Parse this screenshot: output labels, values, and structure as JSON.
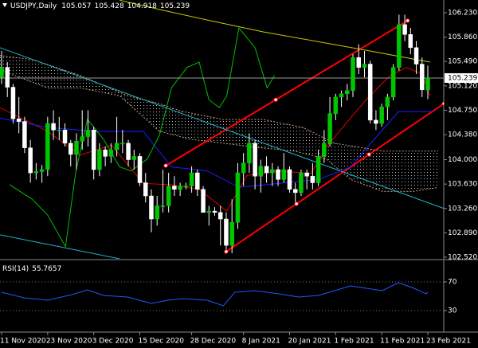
{
  "chart_data": [
    {
      "type": "candlestick",
      "title": "USDJPY,Daily",
      "categories": [
        "11 Nov 2020",
        null,
        null,
        null,
        null,
        null,
        null,
        null,
        "23 Nov 2020",
        null,
        null,
        null,
        null,
        null,
        null,
        null,
        "3 Dec 2020",
        null,
        null,
        null,
        null,
        null,
        null,
        null,
        "15 Dec 2020",
        null,
        null,
        null,
        null,
        null,
        null,
        null,
        null,
        "28 Dec 2020",
        null,
        null,
        null,
        null,
        null,
        null,
        null,
        null,
        "8 Jan 2021",
        null,
        null,
        null,
        null,
        null,
        null,
        null,
        "20 Jan 2021",
        null,
        null,
        null,
        null,
        null,
        null,
        null,
        "1 Feb 2021",
        null,
        null,
        null,
        null,
        null,
        null,
        null,
        "11 Feb 2021",
        null,
        null,
        null,
        null,
        null,
        null,
        null,
        "23 Feb 2021"
      ],
      "open": [
        105.25,
        105.4,
        105.1,
        104.62,
        104.58,
        104.18,
        103.8,
        103.82,
        103.85,
        104.55,
        104.45,
        104.45,
        104.25,
        104.08,
        104.28,
        104.35,
        104.45,
        103.85,
        104.15,
        104.05,
        104.15,
        104.25,
        104.25,
        104.0,
        104.05,
        103.65,
        103.45,
        103.1,
        103.3,
        103.3,
        103.6,
        103.55,
        103.6,
        103.6,
        103.8,
        103.55,
        103.2,
        103.22,
        103.2,
        103.1,
        102.7,
        103.05,
        103.8,
        103.95,
        104.25,
        103.75,
        103.9,
        103.8,
        103.85,
        103.7,
        103.85,
        103.55,
        103.5,
        103.8,
        103.75,
        103.65,
        104.05,
        104.25,
        104.7,
        104.95,
        105.0,
        105.05,
        105.55,
        105.4,
        105.45,
        104.6,
        104.55,
        104.8,
        104.95,
        105.4,
        106.05,
        105.9,
        105.7,
        105.45,
        105.057
      ],
      "high": [
        105.65,
        105.48,
        105.15,
        104.95,
        104.65,
        104.3,
        103.95,
        103.92,
        104.65,
        104.75,
        104.65,
        104.55,
        104.3,
        104.4,
        104.75,
        104.75,
        104.5,
        104.25,
        104.2,
        104.25,
        104.65,
        104.45,
        104.3,
        104.15,
        104.1,
        103.8,
        103.55,
        103.45,
        103.85,
        103.8,
        103.75,
        103.65,
        103.65,
        103.9,
        103.85,
        103.6,
        103.3,
        103.28,
        103.3,
        103.2,
        103.4,
        103.95,
        104.1,
        104.4,
        104.3,
        104.0,
        104.05,
        103.95,
        103.9,
        104.1,
        103.9,
        103.65,
        103.85,
        103.85,
        103.95,
        104.15,
        104.45,
        104.95,
        105.0,
        105.05,
        105.15,
        105.6,
        105.75,
        105.65,
        105.5,
        104.75,
        104.85,
        105.0,
        105.45,
        106.2,
        106.2,
        106.0,
        105.8,
        105.55,
        105.428
      ],
      "low": [
        105.15,
        104.95,
        104.55,
        104.4,
        104.1,
        103.65,
        103.7,
        103.65,
        103.75,
        104.3,
        104.3,
        104.2,
        103.9,
        103.85,
        104.15,
        104.2,
        103.7,
        103.75,
        103.9,
        103.95,
        104.05,
        104.1,
        103.9,
        103.85,
        103.6,
        103.35,
        102.9,
        103.0,
        103.2,
        103.2,
        103.45,
        103.45,
        103.55,
        103.5,
        103.45,
        103.2,
        103.0,
        103.15,
        102.7,
        102.6,
        102.58,
        102.95,
        103.6,
        103.8,
        103.55,
        103.5,
        103.65,
        103.6,
        103.6,
        103.65,
        103.5,
        103.35,
        103.45,
        103.55,
        103.55,
        103.6,
        103.95,
        104.2,
        104.6,
        104.8,
        104.9,
        104.95,
        105.3,
        105.25,
        104.55,
        104.45,
        104.5,
        104.6,
        104.9,
        105.35,
        105.8,
        105.6,
        105.3,
        104.95,
        104.918
      ],
      "close": [
        105.4,
        105.1,
        104.62,
        104.58,
        104.18,
        103.8,
        103.82,
        103.85,
        104.55,
        104.45,
        104.45,
        104.25,
        104.08,
        104.28,
        104.35,
        104.45,
        103.85,
        104.15,
        104.05,
        104.15,
        104.25,
        104.25,
        104.0,
        104.05,
        103.65,
        103.45,
        103.1,
        103.3,
        103.3,
        103.6,
        103.55,
        103.6,
        103.6,
        103.8,
        103.55,
        103.2,
        103.22,
        103.2,
        103.1,
        102.7,
        103.05,
        103.8,
        103.95,
        104.25,
        103.75,
        103.9,
        103.8,
        103.85,
        103.7,
        103.85,
        103.55,
        103.5,
        103.8,
        103.75,
        103.65,
        104.05,
        104.25,
        104.7,
        104.95,
        105.0,
        105.05,
        105.55,
        105.4,
        105.45,
        104.6,
        104.55,
        104.8,
        104.95,
        105.4,
        106.05,
        105.9,
        105.7,
        105.45,
        105.06,
        105.239
      ],
      "up_color": "#00c800",
      "down_color": "#ffffff",
      "wick_color": "#ffffff",
      "ylim": [
        102.496,
        106.423
      ],
      "yticks": [
        {
          "value": 106.23,
          "label": "106.230"
        },
        {
          "value": 105.86,
          "label": "105.860"
        },
        {
          "value": 105.49,
          "label": "105.490"
        },
        {
          "value": 105.12,
          "label": "105.120"
        },
        {
          "value": 104.75,
          "label": "104.750"
        },
        {
          "value": 104.38,
          "label": "104.380"
        },
        {
          "value": 104.0,
          "label": "104.000"
        },
        {
          "value": 103.63,
          "label": "103.630"
        },
        {
          "value": 103.26,
          "label": "103.260"
        },
        {
          "value": 102.89,
          "label": "102.890"
        },
        {
          "value": 102.52,
          "label": "102.520"
        }
      ],
      "cloud": {
        "color": "#c89a78",
        "upper": {
          "x": [
            -0.3,
            5.3,
            13.6,
            21.9,
            27.4,
            31.5,
            38.5,
            45.4,
            52.3,
            57.8,
            62.0,
            66.1,
            70.3,
            75.8
          ],
          "values": [
            105.58,
            105.52,
            105.28,
            104.97,
            104.85,
            104.73,
            104.61,
            104.61,
            104.49,
            104.25,
            104.19,
            104.13,
            104.13,
            104.13
          ]
        },
        "lower": {
          "x": [
            -0.3,
            8.0,
            13.6,
            20.5,
            27.4,
            32.9,
            38.5,
            44.0,
            50.9,
            56.4,
            60.6,
            66.1,
            71.6,
            75.8
          ],
          "values": [
            105.36,
            105.09,
            105.09,
            104.97,
            104.43,
            104.31,
            104.25,
            104.19,
            104.13,
            104.01,
            103.7,
            103.52,
            103.52,
            103.58
          ]
        }
      },
      "lines": [
        {
          "color": "#c8c800",
          "x": [
            20.5,
            27.4,
            35.7,
            45.4,
            55.0,
            63.3,
            74.4
          ],
          "values": [
            106.42,
            106.28,
            106.12,
            105.94,
            105.79,
            105.66,
            105.48
          ]
        },
        {
          "color": "#e00000",
          "x": [
            -0.3,
            3.9,
            8.0,
            13.6,
            19.1,
            24.6,
            29.5,
            34.3,
            39.1,
            42.6,
            48.1,
            53.7,
            56.4,
            59.2,
            63.3,
            67.5,
            70.3,
            73.0,
            74.4
          ],
          "values": [
            104.79,
            104.61,
            104.43,
            104.07,
            104.22,
            103.64,
            103.62,
            103.55,
            103.22,
            103.76,
            103.83,
            103.79,
            104.19,
            104.49,
            104.91,
            105.28,
            105.4,
            105.3,
            104.97
          ]
        },
        {
          "color": "#1e1eff",
          "x": [
            -0.3,
            8.0,
            16.3,
            24.6,
            29.5,
            35.7,
            41.2,
            48.1,
            55.0,
            60.6,
            64.7,
            68.9,
            73.0,
            75.1
          ],
          "values": [
            104.63,
            104.49,
            104.43,
            104.43,
            103.89,
            103.83,
            103.58,
            103.64,
            103.7,
            103.89,
            104.31,
            104.73,
            104.73,
            104.73
          ]
        },
        {
          "color": "#00c000",
          "x": [
            1.4,
            5.3,
            8.0,
            11.1,
            12.9,
            14.9,
            17.7,
            20.5,
            22.5,
            25.3,
            27.4,
            29.5,
            32.2,
            34.3,
            36.0,
            37.8,
            39.1,
            41.2,
            44.0,
            46.1,
            47.4
          ],
          "values": [
            103.62,
            103.4,
            103.16,
            102.68,
            103.83,
            104.61,
            104.31,
            103.89,
            103.83,
            104.01,
            104.37,
            105.09,
            105.4,
            105.48,
            104.91,
            104.79,
            104.97,
            106.0,
            105.7,
            105.09,
            105.28
          ]
        }
      ],
      "trendlines": [
        {
          "color": "#ff0000",
          "markers": true,
          "x": [
            28.5,
            47.6,
            70.5
          ],
          "values": [
            103.91,
            104.91,
            106.11
          ]
        },
        {
          "color": "#ff0000",
          "markers": true,
          "x": [
            39.0,
            51.2,
            63.8,
            76.8
          ],
          "values": [
            102.605,
            103.33,
            104.08,
            104.85
          ]
        },
        {
          "color": "#20b4c8",
          "markers": false,
          "x": [
            -0.3,
            76.8
          ],
          "values": [
            105.7,
            103.26
          ]
        },
        {
          "color": "#20b4c8",
          "markers": false,
          "x": [
            -0.3,
            20.5
          ],
          "values": [
            102.86,
            102.496
          ]
        }
      ]
    },
    {
      "type": "line",
      "title": "RSI(14)",
      "series": [
        {
          "color": "#1e5aff",
          "x": [
            0,
            3.9,
            8.0,
            12.2,
            14.9,
            17.7,
            21.9,
            26.0,
            28.8,
            31.5,
            35.7,
            38.5,
            40.5,
            44.0,
            48.1,
            51.6,
            55.0,
            57.8,
            60.6,
            63.3,
            66.1,
            68.9,
            71.6,
            73.7,
            74
          ],
          "values": [
            55.6,
            47.8,
            44.4,
            52.2,
            58.9,
            51.1,
            48.9,
            40.0,
            44.4,
            46.7,
            44.4,
            36.7,
            55.6,
            57.8,
            53.3,
            48.9,
            51.1,
            57.8,
            64.4,
            61.1,
            57.8,
            68.9,
            61.1,
            53.3,
            55.7657
          ]
        }
      ],
      "ylim": [
        0,
        100
      ],
      "yticks": [
        70,
        30
      ]
    }
  ]
}
